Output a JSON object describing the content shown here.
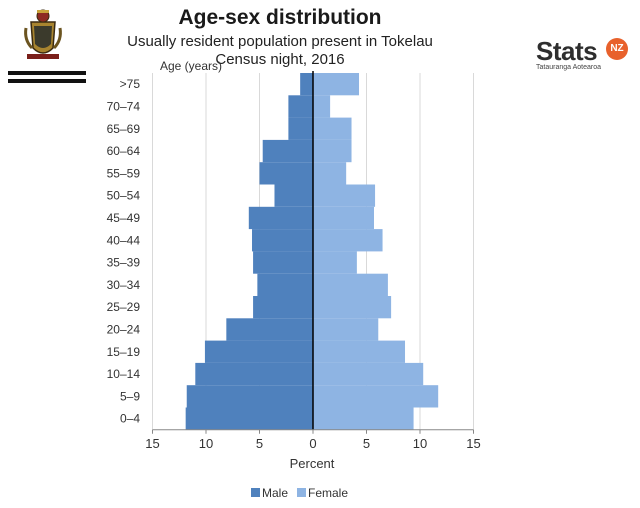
{
  "header": {
    "title": "Age-sex distribution",
    "subtitle_line1": "Usually resident population present in Tokelau",
    "subtitle_line2": "Census night, 2016"
  },
  "logo": {
    "word": "Stats",
    "badge": "NZ",
    "tagline": "Tatauranga Aotearoa"
  },
  "crest": {
    "icon": "coat-of-arms-icon"
  },
  "colors": {
    "male": "#4f81bd",
    "female": "#8eb4e3",
    "axis": "#000000",
    "grid": "#d9d9d9"
  },
  "chart_data": {
    "type": "bar",
    "orientation": "horizontal-population-pyramid",
    "title": "Age-sex distribution",
    "subtitle": "Usually resident population present in Tokelau Census night, 2016",
    "ylabel": "Age (years)",
    "xlabel": "Percent",
    "categories": [
      "0–4",
      "5–9",
      "10–14",
      "15–19",
      "20–24",
      "25–29",
      "30–34",
      "35–39",
      "40–44",
      "45–49",
      "50–54",
      "55–59",
      "60–64",
      "65–69",
      "70–74",
      ">75"
    ],
    "x_ticks": [
      "15",
      "10",
      "5",
      "0",
      "5",
      "10",
      "15"
    ],
    "xlim": [
      -15,
      15
    ],
    "grid": true,
    "legend": "bottom",
    "series": [
      {
        "name": "Male",
        "values": [
          11.9,
          11.8,
          11.0,
          10.1,
          8.1,
          5.6,
          5.2,
          5.6,
          5.7,
          6.0,
          3.6,
          5.0,
          4.7,
          2.3,
          2.3,
          1.2
        ]
      },
      {
        "name": "Female",
        "values": [
          9.4,
          11.7,
          10.3,
          8.6,
          6.1,
          7.3,
          7.0,
          4.1,
          6.5,
          5.7,
          5.8,
          3.1,
          3.6,
          3.6,
          1.6,
          4.3
        ]
      }
    ]
  }
}
